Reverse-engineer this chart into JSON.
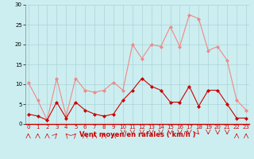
{
  "x": [
    0,
    1,
    2,
    3,
    4,
    5,
    6,
    7,
    8,
    9,
    10,
    11,
    12,
    13,
    14,
    15,
    16,
    17,
    18,
    19,
    20,
    21,
    22,
    23
  ],
  "rafales": [
    10.5,
    6.0,
    1.0,
    11.5,
    2.0,
    11.5,
    8.5,
    8.0,
    8.5,
    10.5,
    8.5,
    20.0,
    16.5,
    20.0,
    19.5,
    24.5,
    19.5,
    27.5,
    26.5,
    18.5,
    19.5,
    16.0,
    6.0,
    3.5
  ],
  "moyen": [
    2.5,
    2.0,
    1.0,
    5.5,
    1.5,
    5.5,
    3.5,
    2.5,
    2.0,
    2.5,
    6.0,
    8.5,
    11.5,
    9.5,
    8.5,
    5.5,
    5.5,
    9.5,
    4.5,
    8.5,
    8.5,
    5.0,
    1.5,
    1.5
  ],
  "bg_color": "#cceef0",
  "grid_color": "#aad4d8",
  "rafales_color": "#f08888",
  "moyen_color": "#cc0000",
  "xlabel": "Vent moyen/en rafales ( km/h )",
  "ylim": [
    0,
    30
  ],
  "yticks": [
    0,
    5,
    10,
    15,
    20,
    25,
    30
  ],
  "xticks": [
    0,
    1,
    2,
    3,
    4,
    5,
    6,
    7,
    8,
    9,
    10,
    11,
    12,
    13,
    14,
    15,
    16,
    17,
    18,
    19,
    20,
    21,
    22,
    23
  ]
}
